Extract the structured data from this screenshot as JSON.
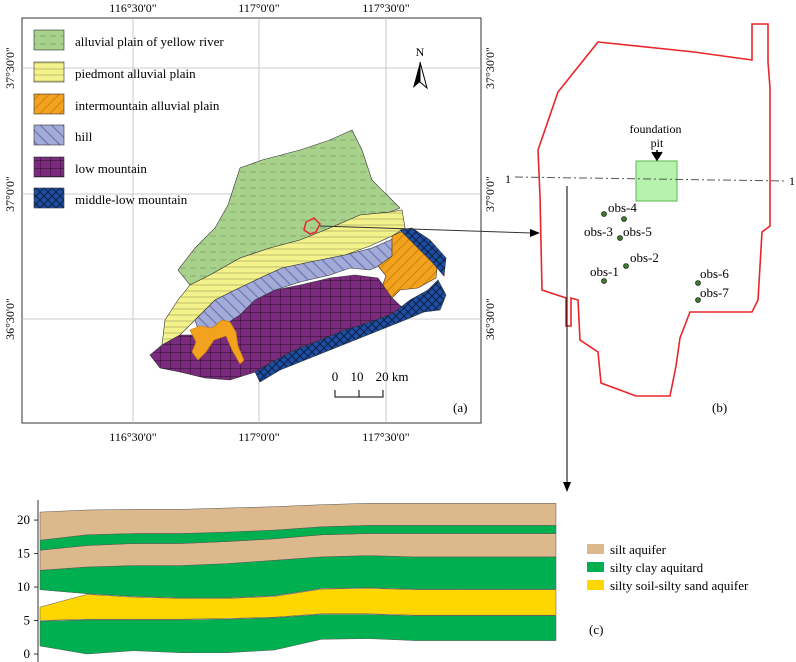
{
  "map": {
    "top_ticks": [
      "116°30'0\"",
      "117°0'0\"",
      "117°30'0\""
    ],
    "bottom_ticks": [
      "116°30'0\"",
      "117°0'0\"",
      "117°30'0\""
    ],
    "left_ticks": [
      "37°30'0\"",
      "37°0'0\"",
      "36°30'0\""
    ],
    "right_ticks": [
      "37°30'0\"",
      "37°0'0\"",
      "36°30'0\""
    ],
    "north": "N",
    "scale_labels": [
      "0",
      "10",
      "20 km"
    ],
    "panel_label": "(a)",
    "legend": [
      {
        "label": "alluvial plain of yellow river",
        "color": "#a8d28c"
      },
      {
        "label": "piedmont alluvial plain",
        "color": "#f4f28a"
      },
      {
        "label": "intermountain alluvial plain",
        "color": "#f2a21e"
      },
      {
        "label": "hill",
        "color": "#a3abd9"
      },
      {
        "label": "low mountain",
        "color": "#7b2b7e"
      },
      {
        "label": "middle-low mountain",
        "color": "#1e4ea0"
      }
    ]
  },
  "site": {
    "foundation_label": "foundation\npit",
    "section_marker": "1",
    "wells": [
      "obs-1",
      "obs-2",
      "obs-3",
      "obs-4",
      "obs-5",
      "obs-6",
      "obs-7"
    ],
    "panel_label": "(b)",
    "boundary_color": "#e8262b"
  },
  "chart_data": {
    "type": "area",
    "x": [
      0,
      1,
      2,
      3,
      4,
      5,
      6,
      7,
      8,
      9,
      10,
      11
    ],
    "ylim": [
      0,
      23
    ],
    "yticks": [
      0,
      5,
      10,
      15,
      20
    ],
    "title": "",
    "xlabel": "",
    "ylabel": "",
    "layers": [
      {
        "name": "silty soil-silty sand aquifer",
        "color": "#ffd700",
        "bottom": [
          5,
          5.2,
          5.2,
          5.2,
          5.3,
          5.5,
          6,
          6,
          5.8,
          5.8,
          5.8,
          5.8
        ],
        "top": [
          7,
          8.9,
          8.5,
          8.3,
          8.3,
          8.6,
          9.7,
          9.8,
          9.6,
          9.6,
          9.6,
          9.6
        ]
      },
      {
        "name": "silty clay aquitard",
        "color": "#00b050",
        "bottom": [
          1.2,
          0,
          0.5,
          0.2,
          0.2,
          0.6,
          2.2,
          2.3,
          2.0,
          2.0,
          2.0,
          2.0
        ],
        "top": [
          4.9,
          5.1,
          5.1,
          5.1,
          5.2,
          5.4,
          5.9,
          5.9,
          5.7,
          5.7,
          5.7,
          5.7
        ]
      },
      {
        "name": "silty clay aquitard",
        "color": "#00b050",
        "bottom": [
          9.6,
          9.0,
          8.6,
          8.4,
          8.4,
          8.7,
          9.8,
          9.9,
          9.7,
          9.7,
          9.7,
          9.7
        ],
        "top": [
          12.5,
          13,
          13.2,
          13.2,
          13.5,
          14,
          14.5,
          14.7,
          14.5,
          14.5,
          14.5,
          14.5
        ]
      },
      {
        "name": "silt aquifer",
        "color": "#dcb88d",
        "bottom": [
          12.5,
          13,
          13.2,
          13.2,
          13.5,
          14,
          14.5,
          14.7,
          14.5,
          14.5,
          14.5,
          14.5
        ],
        "top": [
          15.5,
          16.2,
          16.5,
          16.5,
          16.8,
          17.2,
          17.8,
          18,
          18,
          18,
          18,
          18
        ]
      },
      {
        "name": "silty clay aquitard",
        "color": "#00b050",
        "bottom": [
          15.5,
          16.2,
          16.5,
          16.5,
          16.8,
          17.2,
          17.8,
          18,
          18,
          18,
          18,
          18
        ],
        "top": [
          17,
          17.8,
          18,
          18,
          18.2,
          18.5,
          19,
          19.2,
          19.2,
          19.2,
          19.2,
          19.2
        ]
      },
      {
        "name": "silt aquifer",
        "color": "#dcb88d",
        "bottom": [
          17,
          17.8,
          18,
          18,
          18.2,
          18.5,
          19,
          19.2,
          19.2,
          19.2,
          19.2,
          19.2
        ],
        "top": [
          21.2,
          21.5,
          21.6,
          21.6,
          21.8,
          22,
          22.3,
          22.5,
          22.5,
          22.5,
          22.5,
          22.5
        ]
      }
    ],
    "legend": [
      {
        "label": "silt aquifer",
        "color": "#dcb88d"
      },
      {
        "label": "silty clay aquitard",
        "color": "#00b050"
      },
      {
        "label": "silty soil-silty sand aquifer",
        "color": "#ffd700"
      }
    ],
    "panel_label": "(c)"
  }
}
